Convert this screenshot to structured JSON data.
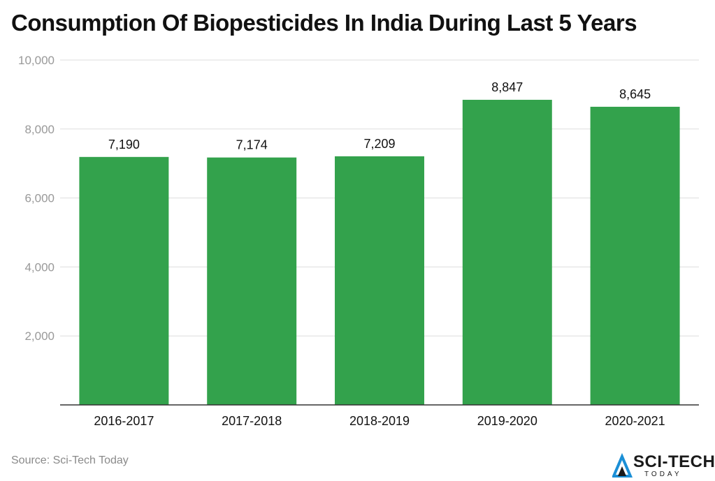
{
  "title": "Consumption Of Biopesticides In India During Last 5 Years",
  "source": "Source: Sci-Tech Today",
  "logo": {
    "name": "SCI-TECH",
    "tagline": "TODAY",
    "icon": "sci-tech-logo-icon"
  },
  "colors": {
    "bar": "#33a24c",
    "grid": "#dddddd",
    "axis": "#333333",
    "tick_label": "#999999"
  },
  "chart_data": {
    "type": "bar",
    "title": "Consumption Of Biopesticides In India During Last 5 Years",
    "xlabel": "",
    "ylabel": "",
    "categories": [
      "2016-2017",
      "2017-2018",
      "2018-2019",
      "2019-2020",
      "2020-2021"
    ],
    "values": [
      7190,
      7174,
      7209,
      8847,
      8645
    ],
    "value_labels": [
      "7,190",
      "7,174",
      "7,209",
      "8,847",
      "8,645"
    ],
    "ylim": [
      0,
      10000
    ],
    "yticks": [
      2000,
      4000,
      6000,
      8000,
      10000
    ],
    "ytick_labels": [
      "2,000",
      "4,000",
      "6,000",
      "8,000",
      "10,000"
    ],
    "grid": true,
    "legend": "none"
  }
}
